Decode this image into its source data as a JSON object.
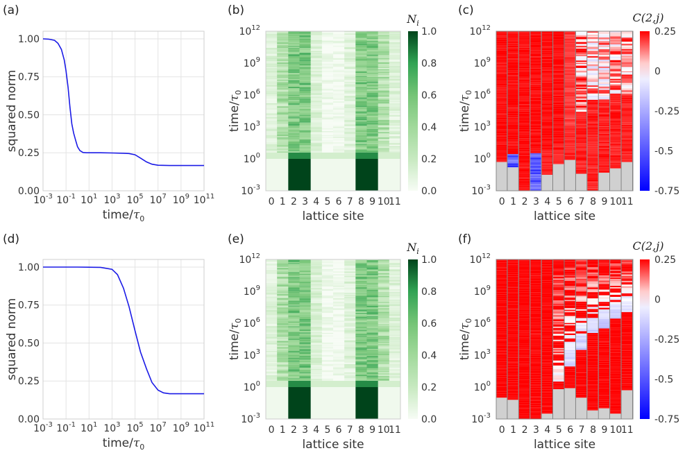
{
  "chart_data": [
    {
      "panel": "(a)",
      "type": "line",
      "xscale": "log",
      "xlabel": "time/τ₀",
      "ylabel": "squared norm",
      "xlim": [
        0.001,
        100000000000.0
      ],
      "ylim": [
        0,
        1.05
      ],
      "x_ticks": [
        "10^-3",
        "10^-1",
        "10^1",
        "10^3",
        "10^5",
        "10^7",
        "10^9",
        "10^11"
      ],
      "y_ticks": [
        "0.00",
        "0.25",
        "0.50",
        "0.75",
        "1.00"
      ],
      "grid": true,
      "color": "#1a1ae6",
      "series": [
        {
          "x": [
            0.001,
            0.003,
            0.01,
            0.02,
            0.04,
            0.07,
            0.1,
            0.15,
            0.22,
            0.32,
            0.46,
            0.7,
            1,
            1.6,
            3,
            6,
            10,
            100,
            1000,
            10000,
            30000,
            100000,
            300000,
            1000000,
            3000000,
            10000000,
            100000000,
            1000000000.0,
            10000000000.0,
            100000000000.0
          ],
          "y": [
            1.0,
            0.998,
            0.99,
            0.97,
            0.93,
            0.86,
            0.79,
            0.68,
            0.55,
            0.44,
            0.38,
            0.33,
            0.29,
            0.265,
            0.252,
            0.25,
            0.25,
            0.25,
            0.249,
            0.247,
            0.245,
            0.237,
            0.215,
            0.19,
            0.175,
            0.168,
            0.166,
            0.166,
            0.166,
            0.166
          ]
        }
      ]
    },
    {
      "panel": "(b)",
      "type": "heatmap",
      "colormap": "Greens",
      "colorbar_label": "N_i",
      "colorbar_ticks": [
        "0.0",
        "0.2",
        "0.4",
        "0.6",
        "0.8",
        "1.0"
      ],
      "clim": [
        0,
        1
      ],
      "xlabel": "lattice site",
      "ylabel": "time/τ₀",
      "x_categories": [
        "0",
        "1",
        "2",
        "3",
        "4",
        "5",
        "6",
        "7",
        "8",
        "9",
        "10",
        "11"
      ],
      "y_ticks": [
        "10^-3",
        "10^0",
        "10^3",
        "10^6",
        "10^9",
        "10^12"
      ],
      "ylim": [
        0.001,
        1000000000000.0
      ],
      "initial_occupation": [
        0,
        0,
        1,
        1,
        0,
        0,
        0,
        0,
        1,
        1,
        0,
        0
      ],
      "late_time_mean": [
        0.1,
        0.32,
        0.55,
        0.55,
        0.12,
        0.02,
        0.02,
        0.1,
        0.55,
        0.55,
        0.32,
        0.1
      ],
      "switch_time": 1
    },
    {
      "panel": "(c)",
      "type": "heatmap",
      "colormap": "bwr",
      "colorbar_label": "C(2,j)",
      "colorbar_ticks": [
        "0.25",
        "0",
        "-0.25",
        "-0.5",
        "-0.75"
      ],
      "clim": [
        -0.75,
        0.25
      ],
      "xlabel": "lattice site",
      "ylabel": "time/τ₀",
      "x_categories": [
        "0",
        "1",
        "2",
        "3",
        "4",
        "5",
        "6",
        "7",
        "8",
        "9",
        "10",
        "11"
      ],
      "y_ticks": [
        "10^-3",
        "10^0",
        "10^3",
        "10^6",
        "10^9",
        "10^12"
      ],
      "ylim": [
        0.001,
        1000000000000.0
      ],
      "transition_time_exponent": [
        0.2,
        0.5,
        -3,
        0.5,
        0.8,
        1.5,
        3,
        4.5,
        5.5,
        5.5,
        6,
        6.2
      ],
      "late_value": [
        0.25,
        0.25,
        0.25,
        0.25,
        0.25,
        0.25,
        0.2,
        0.12,
        0.05,
        0.04,
        0.08,
        0.12
      ],
      "gray_height_exponent": [
        -0.3,
        -0.8,
        -3,
        -3,
        -1.5,
        -0.5,
        -0.1,
        -1.4,
        -3,
        -1.3,
        -0.9,
        -0.3
      ]
    },
    {
      "panel": "(d)",
      "type": "line",
      "xscale": "log",
      "xlabel": "time/τ₀",
      "ylabel": "squared norm",
      "xlim": [
        0.001,
        100000000000.0
      ],
      "ylim": [
        0,
        1.05
      ],
      "x_ticks": [
        "10^-3",
        "10^-1",
        "10^1",
        "10^3",
        "10^5",
        "10^7",
        "10^9",
        "10^11"
      ],
      "y_ticks": [
        "0.00",
        "0.25",
        "0.50",
        "0.75",
        "1.00"
      ],
      "grid": true,
      "color": "#1a1ae6",
      "series": [
        {
          "x": [
            0.001,
            1,
            100,
            1000,
            3000,
            10000,
            30000,
            100000,
            300000,
            1000000,
            3000000,
            10000000,
            30000000,
            100000000,
            1000000000.0,
            10000000000.0,
            100000000000.0
          ],
          "y": [
            1.0,
            1.0,
            0.998,
            0.985,
            0.95,
            0.86,
            0.74,
            0.58,
            0.44,
            0.33,
            0.24,
            0.19,
            0.172,
            0.166,
            0.166,
            0.166,
            0.166
          ]
        }
      ]
    },
    {
      "panel": "(e)",
      "type": "heatmap",
      "colormap": "Greens",
      "colorbar_label": "N_i",
      "colorbar_ticks": [
        "0.0",
        "0.2",
        "0.4",
        "0.6",
        "0.8",
        "1.0"
      ],
      "clim": [
        0,
        1
      ],
      "xlabel": "lattice site",
      "ylabel": "time/τ₀",
      "x_categories": [
        "0",
        "1",
        "2",
        "3",
        "4",
        "5",
        "6",
        "7",
        "8",
        "9",
        "10",
        "11"
      ],
      "y_ticks": [
        "10^-3",
        "10^0",
        "10^3",
        "10^6",
        "10^9",
        "10^12"
      ],
      "ylim": [
        0.001,
        1000000000000.0
      ],
      "initial_occupation": [
        0,
        0,
        1,
        1,
        0,
        0,
        0,
        0,
        1,
        1,
        0,
        0
      ],
      "late_time_mean": [
        0.1,
        0.32,
        0.55,
        0.55,
        0.12,
        0.02,
        0.02,
        0.1,
        0.55,
        0.55,
        0.32,
        0.1
      ],
      "switch_time": 1
    },
    {
      "panel": "(f)",
      "type": "heatmap",
      "colormap": "bwr",
      "colorbar_label": "C(2,j)",
      "colorbar_ticks": [
        "0.25",
        "0",
        "-0.25",
        "-0.5",
        "-0.75"
      ],
      "clim": [
        -0.75,
        0.25
      ],
      "xlabel": "lattice site",
      "ylabel": "time/τ₀",
      "x_categories": [
        "0",
        "1",
        "2",
        "3",
        "4",
        "5",
        "6",
        "7",
        "8",
        "9",
        "10",
        "11"
      ],
      "y_ticks": [
        "10^-3",
        "10^0",
        "10^3",
        "10^6",
        "10^9",
        "10^12"
      ],
      "ylim": [
        0.001,
        1000000000000.0
      ],
      "transition_time_exponent": [
        20,
        20,
        20,
        20,
        20,
        0.5,
        2,
        3.5,
        5,
        5.5,
        6.5,
        7
      ],
      "late_value": [
        0.25,
        0.25,
        0.25,
        0.25,
        0.25,
        0.25,
        0.25,
        0.25,
        0.25,
        0.25,
        0.25,
        0.25
      ],
      "mid_value": [
        0,
        0,
        0,
        0,
        0,
        -0.02,
        -0.12,
        -0.16,
        -0.18,
        -0.18,
        -0.16,
        -0.12
      ],
      "gray_height_exponent": [
        -1,
        -1.2,
        -3,
        -3,
        -2.5,
        -0.2,
        -0.1,
        -1,
        -2.2,
        -2,
        -2.5,
        -0.3
      ]
    }
  ]
}
